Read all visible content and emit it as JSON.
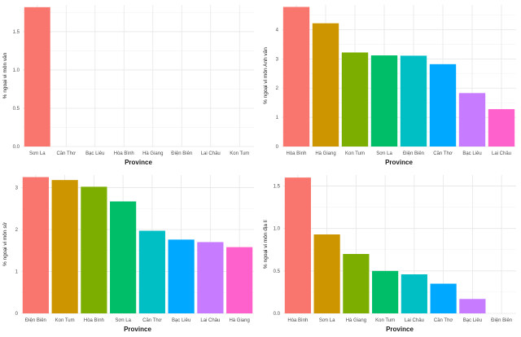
{
  "chart_data": [
    {
      "type": "bar",
      "xlabel": "Province",
      "ylabel": "% ngoại vi môn văn",
      "categories": [
        "Sơn La",
        "Cần Thơ",
        "Bạc Liêu",
        "Hòa Bình",
        "Hà Giang",
        "Điện Biên",
        "Lai Châu",
        "Kon Tum"
      ],
      "values": [
        1.82,
        0,
        0,
        0,
        0,
        0,
        0,
        0
      ],
      "colors": [
        "#F8766D",
        "#CD9600",
        "#7CAE00",
        "#00BE67",
        "#00BFC4",
        "#00A9FF",
        "#C77CFF",
        "#FF61CC"
      ],
      "ylim": [
        0,
        1.85
      ],
      "yticks": [
        "0.0",
        "0.5",
        "1.0",
        "1.5"
      ],
      "ytick_values": [
        0,
        0.5,
        1.0,
        1.5
      ]
    },
    {
      "type": "bar",
      "xlabel": "Province",
      "ylabel": "% ngoại vi môn Anh văn",
      "categories": [
        "Hòa Bình",
        "Hà Giang",
        "Kon Tum",
        "Sơn La",
        "Điện Biên",
        "Cần Thơ",
        "Bạc Liêu",
        "Lai Châu"
      ],
      "values": [
        4.78,
        4.22,
        3.22,
        3.12,
        3.11,
        2.82,
        1.83,
        1.28
      ],
      "colors": [
        "#F8766D",
        "#CD9600",
        "#7CAE00",
        "#00BE67",
        "#00BFC4",
        "#00A9FF",
        "#C77CFF",
        "#FF61CC"
      ],
      "ylim": [
        0,
        4.85
      ],
      "yticks": [
        "0",
        "1",
        "2",
        "3",
        "4"
      ],
      "ytick_values": [
        0,
        1,
        2,
        3,
        4
      ]
    },
    {
      "type": "bar",
      "xlabel": "Province",
      "ylabel": "% ngoại vi môn sử",
      "categories": [
        "Điện Biên",
        "Kon Tum",
        "Hòa Bình",
        "Sơn La",
        "Cần Thơ",
        "Bạc Liêu",
        "Lai Châu",
        "Hà Giang"
      ],
      "values": [
        3.25,
        3.18,
        3.02,
        2.67,
        1.97,
        1.76,
        1.7,
        1.58
      ],
      "colors": [
        "#F8766D",
        "#CD9600",
        "#7CAE00",
        "#00BE67",
        "#00BFC4",
        "#00A9FF",
        "#C77CFF",
        "#FF61CC"
      ],
      "ylim": [
        0,
        3.3
      ],
      "yticks": [
        "0",
        "1",
        "2",
        "3"
      ],
      "ytick_values": [
        0,
        1,
        2,
        3
      ]
    },
    {
      "type": "bar",
      "xlabel": "Province",
      "ylabel": "% ngoại vi môn địa lí",
      "categories": [
        "Hòa Bình",
        "Sơn La",
        "Hà Giang",
        "Kon Tum",
        "Lai Châu",
        "Cần Thơ",
        "Bạc Liêu",
        "Điện Biên"
      ],
      "values": [
        1.6,
        0.93,
        0.7,
        0.5,
        0.46,
        0.35,
        0.17,
        0
      ],
      "colors": [
        "#F8766D",
        "#CD9600",
        "#7CAE00",
        "#00BE67",
        "#00BFC4",
        "#00A9FF",
        "#C77CFF",
        "#FF61CC"
      ],
      "ylim": [
        0,
        1.63
      ],
      "yticks": [
        "0.0",
        "0.5",
        "1.0",
        "1.5"
      ],
      "ytick_values": [
        0,
        0.5,
        1.0,
        1.5
      ]
    }
  ]
}
